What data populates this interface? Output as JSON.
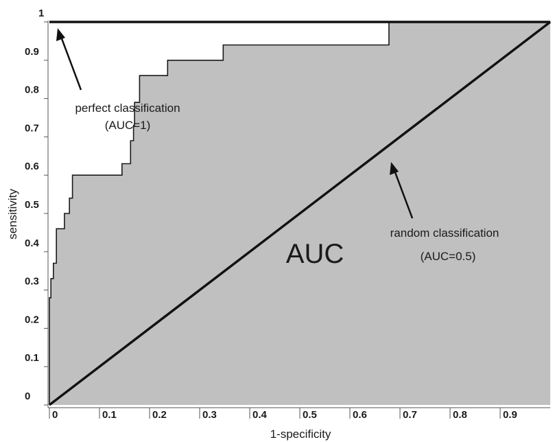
{
  "chart_data": {
    "type": "line",
    "xlabel": "1-specificity",
    "ylabel": "sensitivity",
    "xlim": [
      0,
      1
    ],
    "ylim": [
      0,
      1
    ],
    "x_ticks": [
      {
        "value": 0,
        "label": "0"
      },
      {
        "value": 0.1,
        "label": "0.1"
      },
      {
        "value": 0.2,
        "label": "0.2"
      },
      {
        "value": 0.3,
        "label": "0.3"
      },
      {
        "value": 0.4,
        "label": "0.4"
      },
      {
        "value": 0.5,
        "label": "0.5"
      },
      {
        "value": 0.6,
        "label": "0.6"
      },
      {
        "value": 0.7,
        "label": "0.7"
      },
      {
        "value": 0.8,
        "label": "0.8"
      },
      {
        "value": 0.9,
        "label": "0.9"
      }
    ],
    "y_ticks": [
      {
        "value": 0,
        "label": "0"
      },
      {
        "value": 0.1,
        "label": "0.1"
      },
      {
        "value": 0.2,
        "label": "0.2"
      },
      {
        "value": 0.3,
        "label": "0.3"
      },
      {
        "value": 0.4,
        "label": "0.4"
      },
      {
        "value": 0.5,
        "label": "0.5"
      },
      {
        "value": 0.6,
        "label": "0.6"
      },
      {
        "value": 0.7,
        "label": "0.7"
      },
      {
        "value": 0.8,
        "label": "0.8"
      },
      {
        "value": 0.9,
        "label": "0.9"
      },
      {
        "value": 1,
        "label": "1"
      }
    ],
    "series": [
      {
        "style": "step",
        "points": [
          [
            0,
            0
          ],
          [
            0,
            0.28
          ],
          [
            0.003,
            0.28
          ],
          [
            0.003,
            0.33
          ],
          [
            0.008,
            0.33
          ],
          [
            0.008,
            0.37
          ],
          [
            0.014,
            0.37
          ],
          [
            0.014,
            0.46
          ],
          [
            0.03,
            0.46
          ],
          [
            0.03,
            0.5
          ],
          [
            0.04,
            0.5
          ],
          [
            0.04,
            0.54
          ],
          [
            0.046,
            0.54
          ],
          [
            0.046,
            0.6
          ],
          [
            0.145,
            0.6
          ],
          [
            0.145,
            0.63
          ],
          [
            0.162,
            0.63
          ],
          [
            0.162,
            0.69
          ],
          [
            0.168,
            0.69
          ],
          [
            0.168,
            0.73
          ],
          [
            0.17,
            0.73
          ],
          [
            0.17,
            0.79
          ],
          [
            0.18,
            0.79
          ],
          [
            0.18,
            0.86
          ],
          [
            0.236,
            0.86
          ],
          [
            0.236,
            0.9
          ],
          [
            0.347,
            0.9
          ],
          [
            0.347,
            0.94
          ],
          [
            0.678,
            0.94
          ],
          [
            0.678,
            1
          ],
          [
            1,
            1
          ]
        ]
      },
      {
        "style": "line",
        "points": [
          [
            0,
            0
          ],
          [
            1,
            1
          ]
        ]
      },
      {
        "style": "line",
        "points": [
          [
            0,
            1
          ],
          [
            1,
            1
          ]
        ]
      }
    ],
    "fill": "#c0c0c0",
    "annotations": [
      {
        "id": "perfect",
        "lines": [
          "perfect classification",
          "(AUC=1)"
        ]
      },
      {
        "id": "random",
        "lines": [
          "random classification",
          "(AUC=0.5)"
        ]
      },
      {
        "id": "auc",
        "lines": [
          "AUC"
        ]
      }
    ]
  }
}
